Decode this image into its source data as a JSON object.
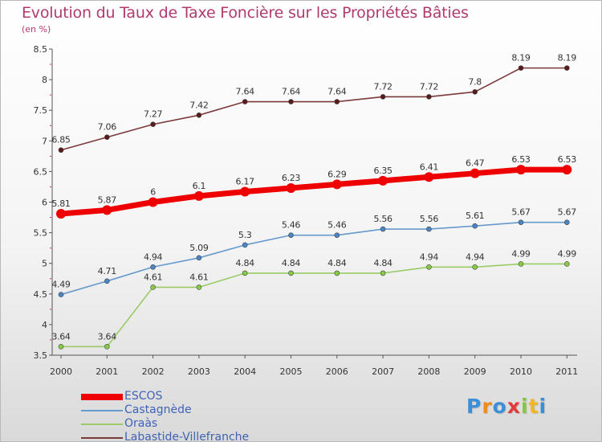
{
  "header": {
    "title": "Evolution du Taux de Taxe Foncière sur les Propriétés Bâties",
    "unit": "(en %)"
  },
  "chart_data": {
    "type": "line",
    "title": "Evolution du Taux de Taxe Foncière sur les Propriétés Bâties",
    "ylabel": "(en %)",
    "xlabel": "",
    "ylim": [
      3.5,
      8.5
    ],
    "yticks": [
      "3.5",
      "4",
      "4.5",
      "5",
      "5.5",
      "6",
      "6.5",
      "7",
      "7.5",
      "8",
      "8.5"
    ],
    "categories": [
      "2000",
      "2001",
      "2002",
      "2003",
      "2004",
      "2005",
      "2006",
      "2007",
      "2008",
      "2009",
      "2010",
      "2011"
    ],
    "grid": false,
    "legend": "bottom-left",
    "series": [
      {
        "name": "Labastide-Villefranche",
        "color": "#7b3a3a",
        "point_color": "#5a1a1a",
        "values": [
          6.85,
          7.06,
          7.27,
          7.42,
          7.64,
          7.64,
          7.64,
          7.72,
          7.72,
          7.8,
          8.19,
          8.19
        ],
        "labels": [
          "6.85",
          "7.06",
          "7.27",
          "7.42",
          "7.64",
          "7.64",
          "7.64",
          "7.72",
          "7.72",
          "7.8",
          "8.19",
          "8.19"
        ]
      },
      {
        "name": "ESCOS",
        "color": "#ee0000",
        "point_color": "#ee0000",
        "values": [
          5.81,
          5.87,
          6.0,
          6.1,
          6.17,
          6.23,
          6.29,
          6.35,
          6.41,
          6.47,
          6.53,
          6.53
        ],
        "labels": [
          "5.81",
          "5.87",
          "6",
          "6.1",
          "6.17",
          "6.23",
          "6.29",
          "6.35",
          "6.41",
          "6.47",
          "6.53",
          "6.53"
        ]
      },
      {
        "name": "Castagnède",
        "color": "#6699cc",
        "point_color": "#4a86c5",
        "values": [
          4.49,
          4.71,
          4.94,
          5.09,
          5.3,
          5.46,
          5.46,
          5.56,
          5.56,
          5.61,
          5.67,
          5.67
        ],
        "labels": [
          "4.49",
          "4.71",
          "4.94",
          "5.09",
          "5.3",
          "5.46",
          "5.46",
          "5.56",
          "5.56",
          "5.61",
          "5.67",
          "5.67"
        ]
      },
      {
        "name": "Oraàs",
        "color": "#99cc66",
        "point_color": "#88cc44",
        "values": [
          3.64,
          3.64,
          4.61,
          4.61,
          4.84,
          4.84,
          4.84,
          4.84,
          4.94,
          4.94,
          4.99,
          4.99
        ],
        "labels": [
          "3.64",
          "3.64",
          "4.61",
          "4.61",
          "4.84",
          "4.84",
          "4.84",
          "4.84",
          "4.94",
          "4.94",
          "4.99",
          "4.99"
        ]
      }
    ]
  },
  "legend": {
    "items": [
      {
        "name": "ESCOS",
        "color": "#ee0000",
        "thick": true
      },
      {
        "name": "Castagnède",
        "color": "#6699cc",
        "thick": false
      },
      {
        "name": "Oraàs",
        "color": "#99cc66",
        "thick": false
      },
      {
        "name": "Labastide-Villefranche",
        "color": "#7b3a3a",
        "thick": false
      }
    ]
  },
  "logo": {
    "letters": [
      "P",
      "r",
      "o",
      "x",
      "i",
      "t",
      "i"
    ],
    "colors": [
      "#3a8fd6",
      "#f08a1c",
      "#3a8fd6",
      "#e23a3a",
      "#8ac43a",
      "#f0b81c",
      "#3a8fd6"
    ]
  }
}
